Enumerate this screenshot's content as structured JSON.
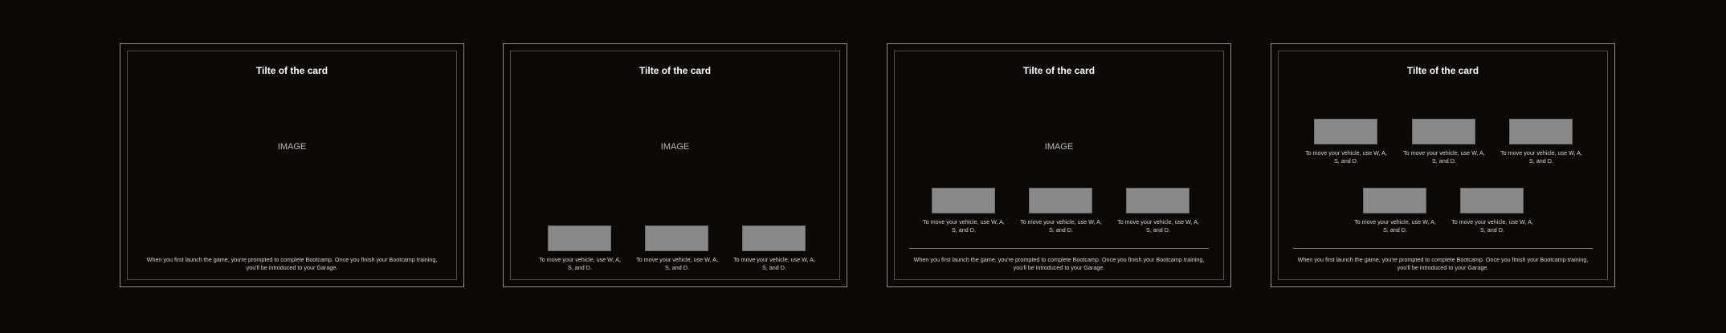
{
  "cards": [
    {
      "title": "Tilte of the card",
      "image_label": "IMAGE",
      "body": "When you first launch the game, you're prompted to complete Bootcamp. Once you finish your Bootcamp training, you'll be introduced to your Garage."
    },
    {
      "title": "Tilte of the card",
      "image_label": "IMAGE",
      "items": [
        "To move your vehicle, use W, A, S, and D.",
        "To move your vehicle, use W, A, S, and D.",
        "To move your vehicle, use W, A, S, and D."
      ]
    },
    {
      "title": "Tilte of the card",
      "image_label": "IMAGE",
      "items": [
        "To move your vehicle, use W, A, S, and D.",
        "To move your vehicle, use W, A, S, and D.",
        "To move your vehicle, use W, A, S, and D."
      ],
      "body": "When you first launch the game, you're prompted to complete Bootcamp. Once you finish your Bootcamp training, you'll be introduced to your Garage."
    },
    {
      "title": "Tilte of the card",
      "items": [
        "To move your vehicle, use W, A, S, and D.",
        "To move your vehicle, use W, A, S, and D.",
        "To move your vehicle, use W, A, S, and D.",
        "To move your vehicle, use W, A, S, and D.",
        "To move your vehicle, use W, A, S, and D."
      ],
      "body": "When you first launch the game, you're prompted to complete Bootcamp. Once you finish your Bootcamp training, you'll be introduced to your Garage."
    }
  ]
}
